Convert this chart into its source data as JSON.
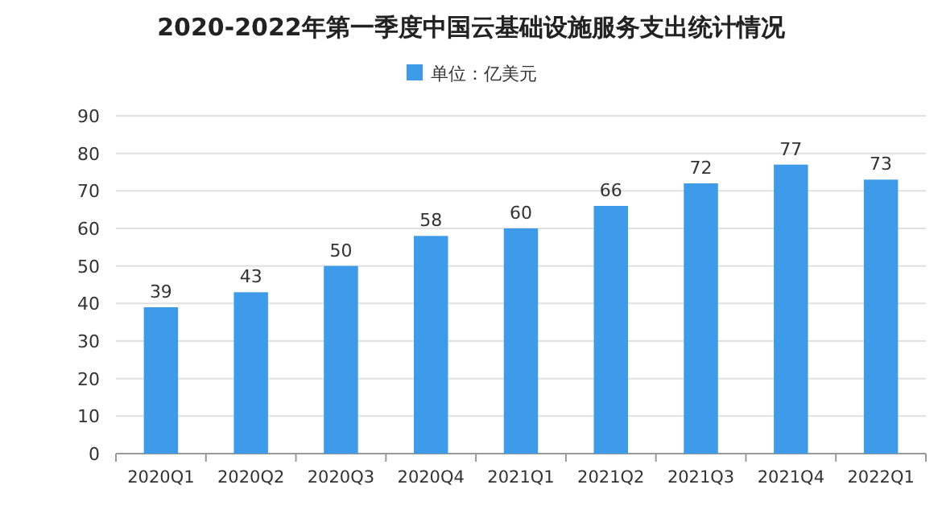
{
  "chart_data": {
    "type": "bar",
    "title": "2020-2022年第一季度中国云基础设施服务支出统计情况",
    "categories": [
      "2020Q1",
      "2020Q2",
      "2020Q3",
      "2020Q4",
      "2021Q1",
      "2021Q2",
      "2021Q3",
      "2021Q4",
      "2022Q1"
    ],
    "series": [
      {
        "name": "单位：亿美元",
        "color": "#3d9be9",
        "values": [
          39,
          43,
          50,
          58,
          60,
          66,
          72,
          77,
          73
        ]
      }
    ],
    "ylim": [
      0,
      90
    ],
    "yticks": [
      0,
      10,
      20,
      30,
      40,
      50,
      60,
      70,
      80,
      90
    ],
    "grid": "y",
    "legend": "top",
    "data_labels": true
  }
}
